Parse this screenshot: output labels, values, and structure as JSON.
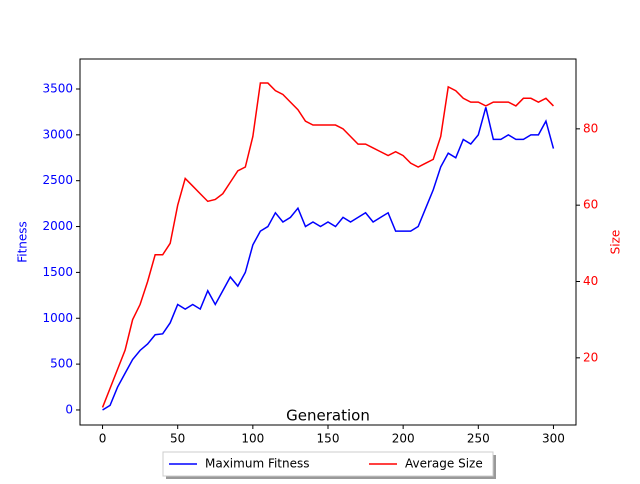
{
  "chart_data": {
    "type": "line",
    "x_label": "Generation",
    "y_label": "Fitness",
    "y2_label": "Size",
    "x": [
      0,
      5,
      10,
      15,
      20,
      25,
      30,
      35,
      40,
      45,
      50,
      55,
      60,
      65,
      70,
      75,
      80,
      85,
      90,
      95,
      100,
      105,
      110,
      115,
      120,
      125,
      130,
      135,
      140,
      145,
      150,
      155,
      160,
      165,
      170,
      175,
      180,
      185,
      190,
      195,
      200,
      205,
      210,
      215,
      220,
      225,
      230,
      235,
      240,
      245,
      250,
      255,
      260,
      265,
      270,
      275,
      280,
      285,
      290,
      295,
      300
    ],
    "series": [
      {
        "name": "Maximum Fitness",
        "color": "#0000ff",
        "axis": "y",
        "values": [
          0,
          50,
          250,
          400,
          550,
          650,
          720,
          820,
          830,
          950,
          1150,
          1100,
          1150,
          1100,
          1300,
          1150,
          1300,
          1450,
          1350,
          1500,
          1800,
          1950,
          2000,
          2150,
          2050,
          2100,
          2200,
          2000,
          2050,
          2000,
          2050,
          2000,
          2100,
          2050,
          2100,
          2150,
          2050,
          2100,
          2150,
          1950,
          1950,
          1950,
          2000,
          2200,
          2400,
          2650,
          2800,
          2750,
          2950,
          2900,
          3000,
          3300,
          2950,
          2950,
          3000,
          2950,
          2950,
          3000,
          3000,
          3150,
          2850
        ]
      },
      {
        "name": "Average Size",
        "color": "#ff0000",
        "axis": "y2",
        "values": [
          7,
          12,
          17,
          22,
          30,
          34,
          40,
          47,
          47,
          50,
          60,
          67,
          65,
          63,
          61,
          61.5,
          63,
          66,
          69,
          70,
          78,
          92,
          92,
          90,
          89,
          87,
          85,
          82,
          81,
          81,
          81,
          81,
          80,
          78,
          76,
          76,
          75,
          74,
          73,
          74,
          73,
          71,
          70,
          71,
          72,
          78,
          91,
          90,
          88,
          87,
          87,
          86,
          87,
          87,
          87,
          86,
          88,
          88,
          87,
          88,
          86
        ]
      }
    ],
    "xlim": [
      -15,
      315
    ],
    "xticks": [
      0,
      50,
      100,
      150,
      200,
      250,
      300
    ],
    "ylim": [
      -164,
      3827
    ],
    "yticks": [
      0,
      500,
      1000,
      1500,
      2000,
      2500,
      3000,
      3500
    ],
    "y2lim": [
      2.4,
      98.3
    ],
    "y2ticks": [
      20,
      40,
      60,
      80
    ],
    "legend": "lower center"
  }
}
